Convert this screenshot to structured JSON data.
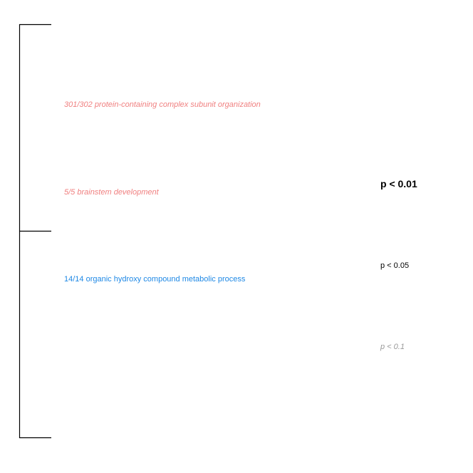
{
  "terms": [
    {
      "label": "301/302 protein-containing complex subunit organization",
      "color": "#f08080",
      "italic": true
    },
    {
      "label": "5/5 brainstem development",
      "color": "#f08080",
      "italic": true
    },
    {
      "label": "14/14 organic hydroxy compound metabolic process",
      "color": "#1e88e5",
      "italic": false
    }
  ],
  "legend": {
    "p001": {
      "label": "p < 0.01",
      "color": "#000000"
    },
    "p005": {
      "label": "p < 0.05",
      "color": "#000000"
    },
    "p01": {
      "label": "p < 0.1",
      "color": "#999999"
    }
  }
}
